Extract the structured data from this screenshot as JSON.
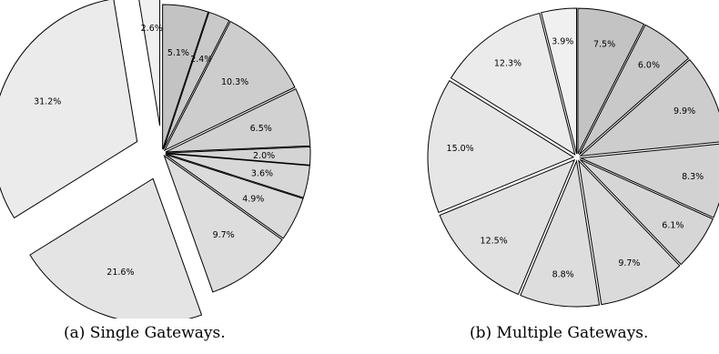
{
  "chart_data": [
    {
      "type": "pie",
      "caption": "(a)  Single Gateways.",
      "slices": [
        {
          "label": "5.1%",
          "value": 5.1,
          "color": "#c3c3c3"
        },
        {
          "label": "2.4%",
          "value": 2.4,
          "color": "#c9c9c9"
        },
        {
          "label": "10.3%",
          "value": 10.3,
          "color": "#cdcdcd"
        },
        {
          "label": "6.5%",
          "value": 6.5,
          "color": "#d1d1d1"
        },
        {
          "label": "2.0%",
          "value": 2.0,
          "color": "#d4d4d4"
        },
        {
          "label": "3.6%",
          "value": 3.6,
          "color": "#d7d7d7"
        },
        {
          "label": "4.9%",
          "value": 4.9,
          "color": "#dadada"
        },
        {
          "label": "9.7%",
          "value": 9.7,
          "color": "#dddddd"
        },
        {
          "label": "21.6%",
          "value": 21.6,
          "color": "#e4e4e4",
          "exploded": true
        },
        {
          "label": "31.2%",
          "value": 31.2,
          "color": "#ebebeb",
          "exploded": true
        },
        {
          "label": "2.6%",
          "value": 2.6,
          "color": "#f0f0f0",
          "exploded": true
        }
      ]
    },
    {
      "type": "pie",
      "caption": "(b)  Multiple Gateways.",
      "slices": [
        {
          "label": "7.5%",
          "value": 7.5,
          "color": "#c3c3c3"
        },
        {
          "label": "6.0%",
          "value": 6.0,
          "color": "#c9c9c9"
        },
        {
          "label": "9.9%",
          "value": 9.9,
          "color": "#cdcdcd"
        },
        {
          "label": "8.3%",
          "value": 8.3,
          "color": "#d2d2d2"
        },
        {
          "label": "6.1%",
          "value": 6.1,
          "color": "#d6d6d6"
        },
        {
          "label": "9.7%",
          "value": 9.7,
          "color": "#dadada"
        },
        {
          "label": "8.8%",
          "value": 8.8,
          "color": "#dddddd"
        },
        {
          "label": "12.5%",
          "value": 12.5,
          "color": "#e1e1e1"
        },
        {
          "label": "15.0%",
          "value": 15.0,
          "color": "#e6e6e6"
        },
        {
          "label": "12.3%",
          "value": 12.3,
          "color": "#ebebeb"
        },
        {
          "label": "3.9%",
          "value": 3.9,
          "color": "#f0f0f0"
        }
      ]
    }
  ]
}
